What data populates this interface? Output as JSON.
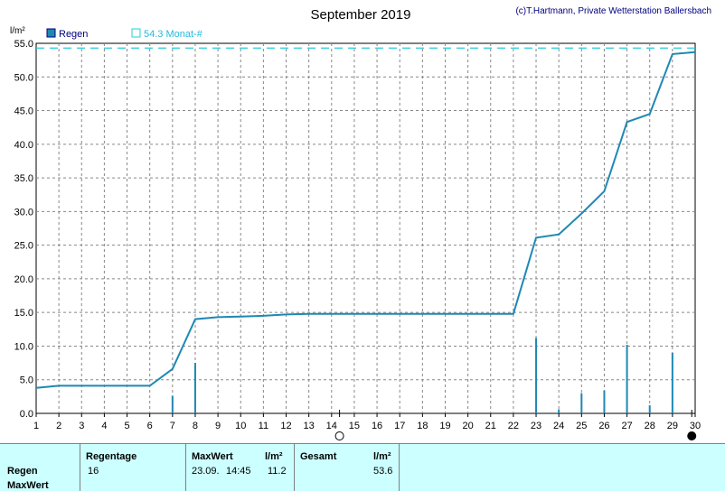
{
  "title": "September 2019",
  "copyright": "(c)T.Hartmann, Private Wetterstation Ballersbach",
  "colors": {
    "series": "#1e88b4",
    "month_line": "#22ccdd",
    "grid": "#888888",
    "table_bg": "#ccffff"
  },
  "chart_data": {
    "type": "bar",
    "ylabel": "l/m²",
    "ylim": [
      0,
      55
    ],
    "yticks": [
      "0.0",
      "5.0",
      "10.0",
      "15.0",
      "20.0",
      "25.0",
      "30.0",
      "35.0",
      "40.0",
      "45.0",
      "50.0",
      "55.0"
    ],
    "xlim": [
      1,
      30
    ],
    "xticks": [
      "1",
      "2",
      "3",
      "4",
      "5",
      "6",
      "7",
      "8",
      "9",
      "10",
      "11",
      "12",
      "13",
      "14",
      "15",
      "16",
      "17",
      "18",
      "19",
      "20",
      "21",
      "22",
      "23",
      "24",
      "25",
      "26",
      "27",
      "28",
      "29",
      "30"
    ],
    "grid": true,
    "legend": [
      {
        "label": "Regen"
      },
      {
        "label": "54.3 Monat-#"
      }
    ],
    "reference_line": {
      "label": "54.3 Monat-#",
      "value": 54.3
    },
    "daily_bars": [
      {
        "x": 7,
        "value": 2.6
      },
      {
        "x": 8,
        "value": 7.5
      },
      {
        "x": 23,
        "value": 11.2
      },
      {
        "x": 24,
        "value": 0.6
      },
      {
        "x": 25,
        "value": 3.0
      },
      {
        "x": 26,
        "value": 3.4
      },
      {
        "x": 27,
        "value": 10.2
      },
      {
        "x": 28,
        "value": 1.2
      },
      {
        "x": 29,
        "value": 9.0
      }
    ],
    "cumulative_line": [
      {
        "x": 1,
        "y": 3.8
      },
      {
        "x": 2,
        "y": 4.1
      },
      {
        "x": 3,
        "y": 4.1
      },
      {
        "x": 4,
        "y": 4.1
      },
      {
        "x": 5,
        "y": 4.1
      },
      {
        "x": 6,
        "y": 4.1
      },
      {
        "x": 7,
        "y": 6.6
      },
      {
        "x": 8,
        "y": 14.0
      },
      {
        "x": 9,
        "y": 14.3
      },
      {
        "x": 10,
        "y": 14.4
      },
      {
        "x": 11,
        "y": 14.5
      },
      {
        "x": 12,
        "y": 14.7
      },
      {
        "x": 13,
        "y": 14.8
      },
      {
        "x": 14,
        "y": 14.8
      },
      {
        "x": 15,
        "y": 14.8
      },
      {
        "x": 16,
        "y": 14.8
      },
      {
        "x": 17,
        "y": 14.8
      },
      {
        "x": 18,
        "y": 14.8
      },
      {
        "x": 19,
        "y": 14.8
      },
      {
        "x": 20,
        "y": 14.8
      },
      {
        "x": 21,
        "y": 14.8
      },
      {
        "x": 22,
        "y": 14.8
      },
      {
        "x": 23,
        "y": 26.1
      },
      {
        "x": 24,
        "y": 26.6
      },
      {
        "x": 25,
        "y": 29.7
      },
      {
        "x": 26,
        "y": 33.0
      },
      {
        "x": 27,
        "y": 43.3
      },
      {
        "x": 28,
        "y": 44.5
      },
      {
        "x": 29,
        "y": 53.4
      },
      {
        "x": 30,
        "y": 53.7
      }
    ],
    "moon_markers": [
      {
        "x": 14.35,
        "phase": "full"
      },
      {
        "x": 29.85,
        "phase": "new"
      }
    ]
  },
  "table": {
    "row_labels": {
      "regen": "Regen",
      "maxwert": "MaxWert"
    },
    "headers": {
      "regentage": "Regentage",
      "maxwert": "MaxWert",
      "unit1": "l/m²",
      "gesamt": "Gesamt",
      "unit2": "l/m²"
    },
    "values": {
      "regentage": "16",
      "max_date": "23.09.",
      "max_time": "14:45",
      "max_value": "11.2",
      "gesamt": "53.6"
    }
  }
}
